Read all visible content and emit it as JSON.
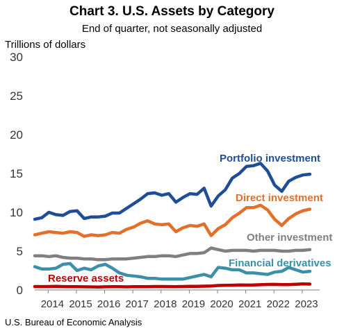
{
  "chart_data": {
    "type": "line",
    "title": "Chart 3. U.S. Assets by Category",
    "subtitle": "End of quarter, not seasonally adjusted",
    "ylabel": "Trillions of dollars",
    "ylim": [
      0,
      30
    ],
    "yticks": [
      "0",
      "5",
      "10",
      "15",
      "20",
      "25",
      "30"
    ],
    "xlabel": "",
    "xticks": [
      "2014",
      "2015",
      "2016",
      "2017",
      "2018",
      "2019",
      "2020",
      "2021",
      "2022",
      "2023"
    ],
    "x": [
      "2013Q3",
      "2013Q4",
      "2014Q1",
      "2014Q2",
      "2014Q3",
      "2014Q4",
      "2015Q1",
      "2015Q2",
      "2015Q3",
      "2015Q4",
      "2016Q1",
      "2016Q2",
      "2016Q3",
      "2016Q4",
      "2017Q1",
      "2017Q2",
      "2017Q3",
      "2017Q4",
      "2018Q1",
      "2018Q2",
      "2018Q3",
      "2018Q4",
      "2019Q1",
      "2019Q2",
      "2019Q3",
      "2019Q4",
      "2020Q1",
      "2020Q2",
      "2020Q3",
      "2020Q4",
      "2021Q1",
      "2021Q2",
      "2021Q3",
      "2021Q4",
      "2022Q1",
      "2022Q2",
      "2022Q3",
      "2022Q4",
      "2023Q1",
      "2023Q2"
    ],
    "grid": false,
    "series": [
      {
        "name": "Portfolio investment",
        "color": "#1f4e96",
        "values": [
          9.1,
          9.3,
          10.0,
          9.7,
          9.6,
          10.1,
          10.2,
          9.2,
          9.4,
          9.4,
          9.5,
          9.9,
          9.9,
          10.5,
          11.1,
          11.7,
          12.4,
          12.5,
          12.2,
          12.4,
          11.3,
          11.9,
          12.4,
          12.3,
          13.1,
          10.8,
          12.1,
          12.9,
          14.4,
          15.0,
          15.9,
          16.0,
          16.3,
          15.3,
          13.5,
          12.7,
          14.0,
          14.5,
          14.8,
          14.9
        ]
      },
      {
        "name": "Direct investment",
        "color": "#e2702a",
        "values": [
          7.1,
          7.3,
          7.5,
          7.4,
          7.3,
          7.5,
          7.4,
          6.9,
          7.1,
          7.0,
          7.1,
          7.4,
          7.3,
          7.8,
          8.1,
          8.6,
          8.9,
          8.5,
          8.4,
          8.5,
          7.5,
          8.0,
          8.3,
          8.2,
          8.5,
          7.0,
          7.9,
          8.4,
          9.3,
          9.9,
          10.6,
          10.6,
          10.9,
          10.3,
          9.1,
          8.3,
          9.2,
          9.8,
          10.2,
          10.4
        ]
      },
      {
        "name": "Other investment",
        "color": "#7f7f7f",
        "values": [
          4.4,
          4.4,
          4.3,
          4.4,
          4.2,
          4.1,
          4.1,
          4.0,
          4.0,
          3.9,
          3.9,
          4.0,
          4.0,
          4.0,
          4.1,
          4.2,
          4.3,
          4.3,
          4.4,
          4.4,
          4.3,
          4.5,
          4.7,
          4.7,
          4.8,
          5.4,
          5.2,
          5.0,
          5.1,
          5.1,
          5.1,
          5.0,
          5.1,
          5.1,
          5.1,
          5.0,
          5.0,
          5.1,
          5.1,
          5.2
        ]
      },
      {
        "name": "Financial derivatives",
        "color": "#3b8fa8",
        "values": [
          3.0,
          2.7,
          2.7,
          2.8,
          3.3,
          3.4,
          2.5,
          2.8,
          2.6,
          3.1,
          3.3,
          2.8,
          2.2,
          1.9,
          1.8,
          1.7,
          1.5,
          1.5,
          1.4,
          1.4,
          1.4,
          1.4,
          1.6,
          1.8,
          2.0,
          1.7,
          2.9,
          2.8,
          2.6,
          2.6,
          2.2,
          2.2,
          2.1,
          2.0,
          2.3,
          2.4,
          2.9,
          2.6,
          2.3,
          2.4
        ]
      },
      {
        "name": "Reserve assets",
        "color": "#c00000",
        "values": [
          0.45,
          0.44,
          0.45,
          0.46,
          0.44,
          0.43,
          0.42,
          0.41,
          0.4,
          0.38,
          0.41,
          0.43,
          0.42,
          0.4,
          0.42,
          0.42,
          0.43,
          0.45,
          0.45,
          0.44,
          0.43,
          0.45,
          0.46,
          0.47,
          0.49,
          0.52,
          0.58,
          0.61,
          0.62,
          0.64,
          0.63,
          0.64,
          0.68,
          0.71,
          0.72,
          0.7,
          0.7,
          0.74,
          0.78,
          0.76
        ]
      }
    ]
  },
  "source": "U.S. Bureau of Economic Analysis"
}
